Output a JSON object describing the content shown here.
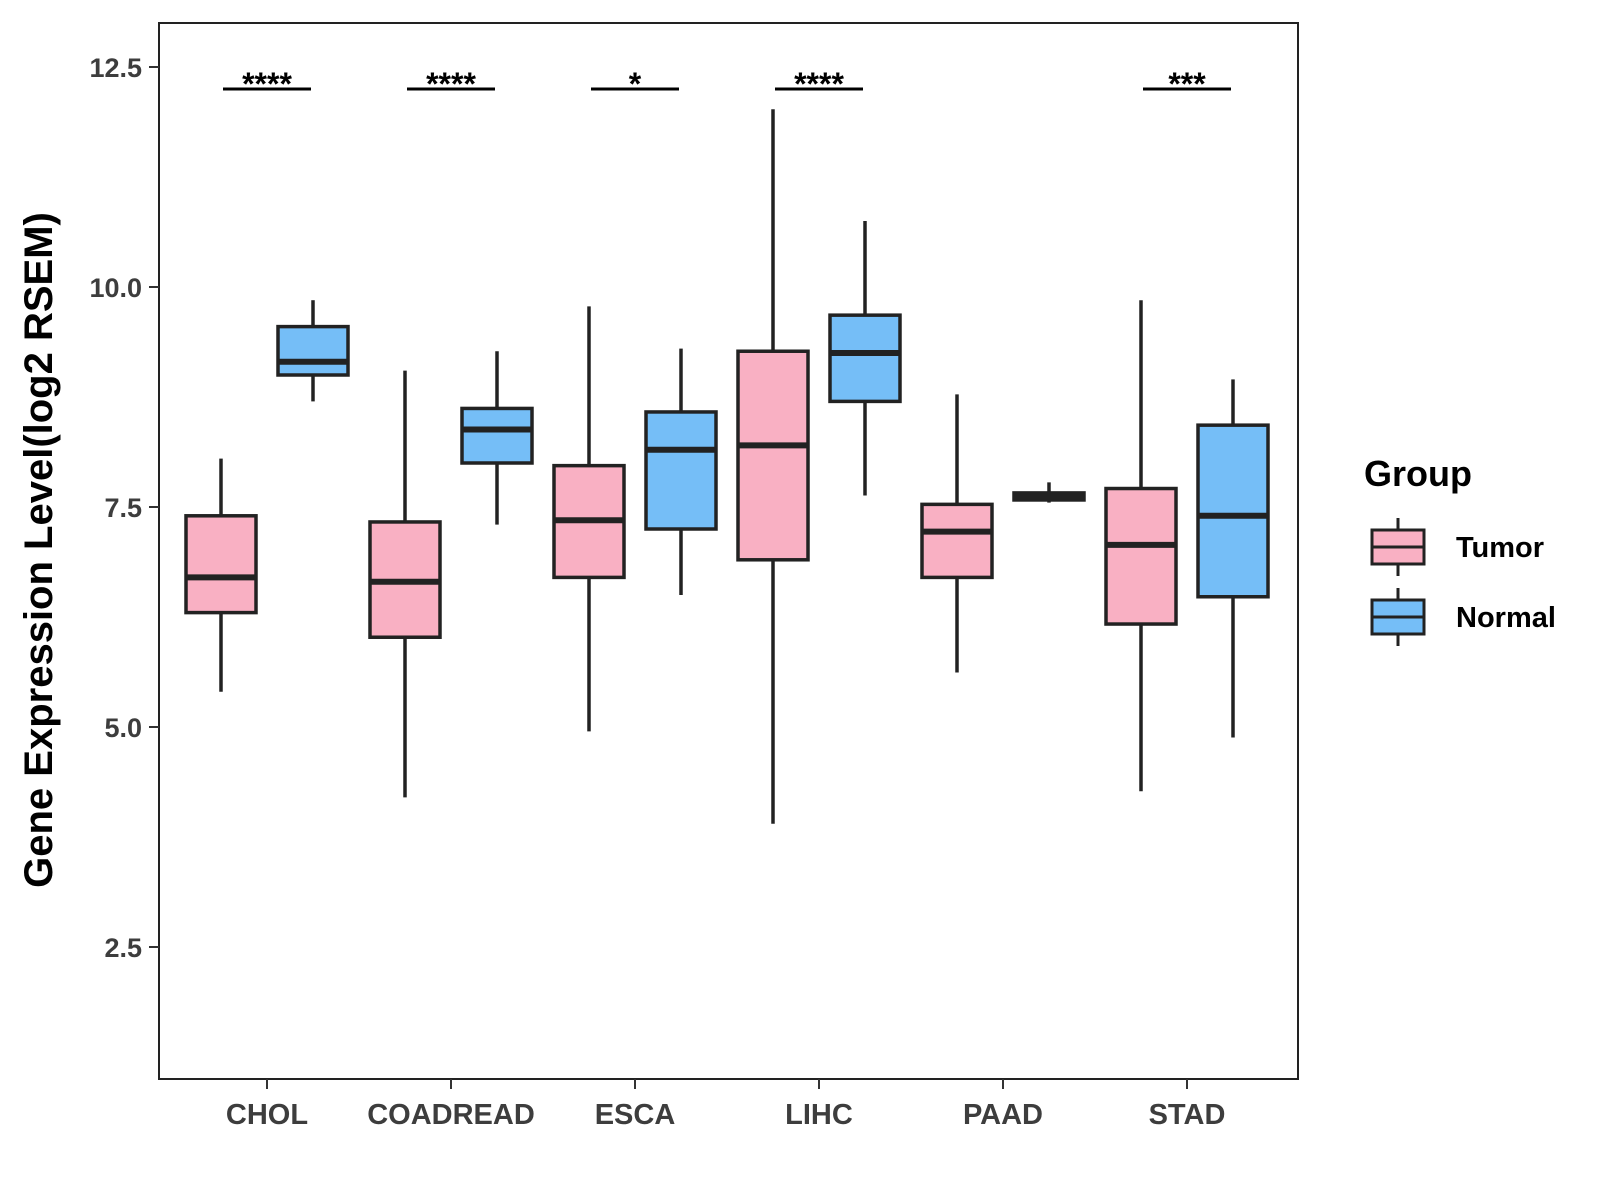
{
  "chart_data": {
    "type": "boxplot",
    "title": "",
    "xlabel": "",
    "ylabel": "Gene Expression Level(log2 RSEM)",
    "ylim": [
      1.0,
      13.0
    ],
    "yticks": [
      2.5,
      5.0,
      7.5,
      10.0,
      12.5
    ],
    "ytick_labels": [
      "2.5",
      "5.0",
      "7.5",
      "10.0",
      "12.5"
    ],
    "categories": [
      "CHOL",
      "COADREAD",
      "ESCA",
      "LIHC",
      "PAAD",
      "STAD"
    ],
    "legend": {
      "title": "Group",
      "position": "right",
      "entries": [
        {
          "name": "Tumor",
          "color": "#f9b0c3"
        },
        {
          "name": "Normal",
          "color": "#75bef7"
        }
      ]
    },
    "series": [
      {
        "name": "Tumor",
        "color": "#f9b0c3",
        "boxes": [
          {
            "min": 5.4,
            "q1": 6.3,
            "median": 6.7,
            "q3": 7.4,
            "max": 8.05
          },
          {
            "min": 4.2,
            "q1": 6.02,
            "median": 6.65,
            "q3": 7.33,
            "max": 9.05
          },
          {
            "min": 4.95,
            "q1": 6.7,
            "median": 7.35,
            "q3": 7.97,
            "max": 9.78
          },
          {
            "min": 3.9,
            "q1": 6.9,
            "median": 8.2,
            "q3": 9.27,
            "max": 12.02
          },
          {
            "min": 5.62,
            "q1": 6.7,
            "median": 7.22,
            "q3": 7.53,
            "max": 8.78
          },
          {
            "min": 4.27,
            "q1": 6.17,
            "median": 7.07,
            "q3": 7.71,
            "max": 9.85
          }
        ]
      },
      {
        "name": "Normal",
        "color": "#75bef7",
        "boxes": [
          {
            "min": 8.7,
            "q1": 9.0,
            "median": 9.15,
            "q3": 9.55,
            "max": 9.85
          },
          {
            "min": 7.3,
            "q1": 8.0,
            "median": 8.38,
            "q3": 8.62,
            "max": 9.27
          },
          {
            "min": 6.5,
            "q1": 7.25,
            "median": 8.15,
            "q3": 8.58,
            "max": 9.3
          },
          {
            "min": 7.63,
            "q1": 8.7,
            "median": 9.25,
            "q3": 9.68,
            "max": 10.75
          },
          {
            "min": 7.55,
            "q1": 7.58,
            "median": 7.62,
            "q3": 7.66,
            "max": 7.78
          },
          {
            "min": 4.88,
            "q1": 6.48,
            "median": 7.4,
            "q3": 8.43,
            "max": 8.95
          }
        ]
      }
    ],
    "significance": [
      {
        "category": "CHOL",
        "label": "****"
      },
      {
        "category": "COADREAD",
        "label": "****"
      },
      {
        "category": "ESCA",
        "label": "*"
      },
      {
        "category": "LIHC",
        "label": "****"
      },
      {
        "category": "STAD",
        "label": "***"
      }
    ]
  }
}
